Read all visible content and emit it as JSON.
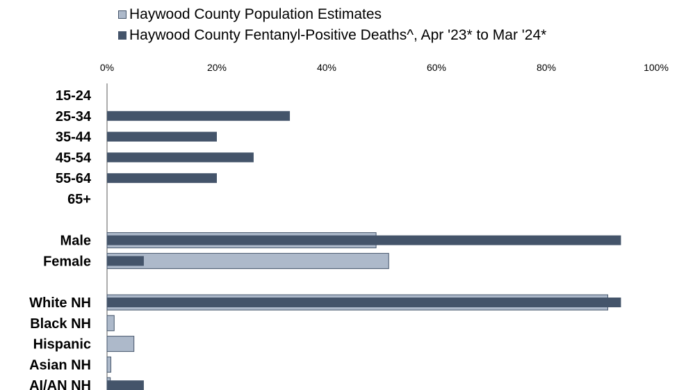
{
  "chart_data": {
    "type": "bar",
    "orientation": "horizontal",
    "categories": [
      "15-24",
      "25-34",
      "35-44",
      "45-54",
      "55-64",
      "65+",
      "",
      "Male",
      "Female",
      "",
      "White NH",
      "Black NH",
      "Hispanic",
      "Asian NH",
      "AI/AN NH"
    ],
    "series": [
      {
        "name": "Haywood County Population Estimates",
        "color": "#adb9ca",
        "values": [
          null,
          null,
          null,
          null,
          null,
          null,
          null,
          49,
          51.3,
          null,
          91.2,
          1.3,
          4.9,
          0.7,
          0.6
        ]
      },
      {
        "name": "Haywood County Fentanyl-Positive Deaths^, Apr '23* to Mar '24*",
        "color": "#44546a",
        "values": [
          null,
          33.3,
          20,
          26.7,
          20,
          null,
          null,
          93.6,
          6.7,
          null,
          93.6,
          null,
          null,
          null,
          6.7
        ]
      }
    ],
    "xlim": [
      0,
      100
    ],
    "x_ticks": [
      "0%",
      "20%",
      "40%",
      "60%",
      "80%",
      "100%"
    ],
    "x_axis_position": "top",
    "legend_position": "top",
    "grid": false,
    "title": "",
    "xlabel": "",
    "ylabel": ""
  }
}
